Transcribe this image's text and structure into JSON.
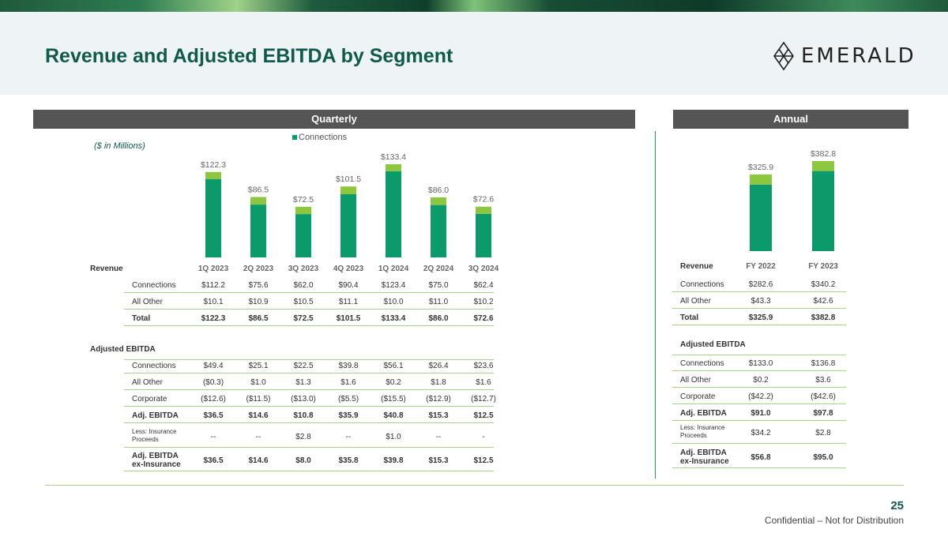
{
  "header": {
    "title": "Revenue and Adjusted EBITDA by Segment",
    "logo_text": "EMERALD"
  },
  "sections": {
    "quarterly": "Quarterly",
    "annual": "Annual"
  },
  "unit_note": "($ in Millions)",
  "legend": {
    "label": "Connections"
  },
  "colors": {
    "connections": "#0b9a6a",
    "all_other": "#8dc63f",
    "title": "#0f5a4a"
  },
  "chart_data": [
    {
      "type": "bar",
      "stacked": true,
      "title": "Quarterly",
      "categories": [
        "1Q 2023",
        "2Q 2023",
        "3Q 2023",
        "4Q 2023",
        "1Q 2024",
        "2Q 2024",
        "3Q 2024"
      ],
      "series": [
        {
          "name": "Connections",
          "values": [
            112.2,
            75.6,
            62.0,
            90.4,
            123.4,
            75.0,
            62.4
          ]
        },
        {
          "name": "All Other",
          "values": [
            10.1,
            10.9,
            10.5,
            11.1,
            10.0,
            11.0,
            10.2
          ]
        }
      ],
      "total_labels": [
        "$122.3",
        "$86.5",
        "$72.5",
        "$101.5",
        "$133.4",
        "$86.0",
        "$72.6"
      ],
      "totals": [
        122.3,
        86.5,
        72.5,
        101.5,
        133.4,
        86.0,
        72.6
      ],
      "ylim": [
        0,
        140
      ]
    },
    {
      "type": "bar",
      "stacked": true,
      "title": "Annual",
      "categories": [
        "FY 2022",
        "FY 2023"
      ],
      "series": [
        {
          "name": "Connections",
          "values": [
            282.6,
            340.2
          ]
        },
        {
          "name": "All Other",
          "values": [
            43.3,
            42.6
          ]
        }
      ],
      "total_labels": [
        "$325.9",
        "$382.8"
      ],
      "totals": [
        325.9,
        382.8
      ],
      "ylim": [
        0,
        420
      ]
    }
  ],
  "quarterly_table": {
    "revenue_header": "Revenue",
    "columns": [
      "1Q 2023",
      "2Q 2023",
      "3Q 2023",
      "4Q 2023",
      "1Q 2024",
      "2Q 2024",
      "3Q 2024"
    ],
    "revenue_rows": [
      {
        "label": "Connections",
        "values": [
          "$112.2",
          "$75.6",
          "$62.0",
          "$90.4",
          "$123.4",
          "$75.0",
          "$62.4"
        ]
      },
      {
        "label": "All Other",
        "values": [
          "$10.1",
          "$10.9",
          "$10.5",
          "$11.1",
          "$10.0",
          "$11.0",
          "$10.2"
        ]
      },
      {
        "label": "Total",
        "values": [
          "$122.3",
          "$86.5",
          "$72.5",
          "$101.5",
          "$133.4",
          "$86.0",
          "$72.6"
        ]
      }
    ],
    "ebitda_header": "Adjusted EBITDA",
    "ebitda_rows": [
      {
        "label": "Connections",
        "values": [
          "$49.4",
          "$25.1",
          "$22.5",
          "$39.8",
          "$56.1",
          "$26.4",
          "$23.6"
        ]
      },
      {
        "label": "All Other",
        "values": [
          "($0.3)",
          "$1.0",
          "$1.3",
          "$1.6",
          "$0.2",
          "$1.8",
          "$1.6"
        ]
      },
      {
        "label": "Corporate",
        "values": [
          "($12.6)",
          "($11.5)",
          "($13.0)",
          "($5.5)",
          "($15.5)",
          "($12.9)",
          "($12.7)"
        ]
      },
      {
        "label": "Adj. EBITDA",
        "values": [
          "$36.5",
          "$14.6",
          "$10.8",
          "$35.9",
          "$40.8",
          "$15.3",
          "$12.5"
        ]
      },
      {
        "label": "Less: Insurance Proceeds",
        "values": [
          "--",
          "--",
          "$2.8",
          "--",
          "$1.0",
          "--",
          "-"
        ]
      },
      {
        "label": "Adj. EBITDA ex-Insurance",
        "values": [
          "$36.5",
          "$14.6",
          "$8.0",
          "$35.8",
          "$39.8",
          "$15.3",
          "$12.5"
        ]
      }
    ]
  },
  "annual_table": {
    "revenue_header": "Revenue",
    "columns": [
      "FY 2022",
      "FY 2023"
    ],
    "revenue_rows": [
      {
        "label": "Connections",
        "values": [
          "$282.6",
          "$340.2"
        ]
      },
      {
        "label": "All Other",
        "values": [
          "$43.3",
          "$42.6"
        ]
      },
      {
        "label": "Total",
        "values": [
          "$325.9",
          "$382.8"
        ]
      }
    ],
    "ebitda_header": "Adjusted EBITDA",
    "ebitda_rows": [
      {
        "label": "Connections",
        "values": [
          "$133.0",
          "$136.8"
        ]
      },
      {
        "label": "All Other",
        "values": [
          "$0.2",
          "$3.6"
        ]
      },
      {
        "label": "Corporate",
        "values": [
          "($42.2)",
          "($42.6)"
        ]
      },
      {
        "label": "Adj. EBITDA",
        "values": [
          "$91.0",
          "$97.8"
        ]
      },
      {
        "label": "Less: Insurance Proceeds",
        "values": [
          "$34.2",
          "$2.8"
        ]
      },
      {
        "label": "Adj. EBITDA ex-Insurance",
        "values": [
          "$56.8",
          "$95.0"
        ]
      }
    ]
  },
  "footer": {
    "page_number": "25",
    "confidential": "Confidential – Not for Distribution"
  }
}
